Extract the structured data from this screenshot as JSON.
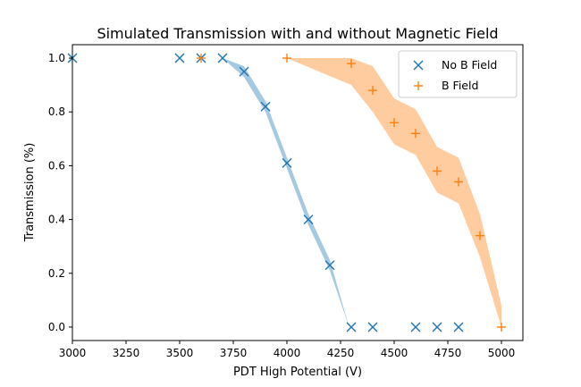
{
  "chart_data": {
    "type": "scatter",
    "title": "Simulated Transmission with and without Magnetic Field",
    "xlabel": "PDT High Potential (V)",
    "ylabel": "Transmission (%)",
    "xlim": [
      3000,
      5100
    ],
    "ylim": [
      -0.05,
      1.05
    ],
    "xticks": [
      3000,
      3250,
      3500,
      3750,
      4000,
      4250,
      4500,
      4750,
      5000
    ],
    "xtick_labels": [
      "3000",
      "3250",
      "3500",
      "3750",
      "4000",
      "4250",
      "4500",
      "4750",
      "5000"
    ],
    "yticks": [
      0.0,
      0.2,
      0.4,
      0.6,
      0.8,
      1.0
    ],
    "ytick_labels": [
      "0.0",
      "0.2",
      "0.4",
      "0.6",
      "0.8",
      "1.0"
    ],
    "grid": false,
    "legend_position": "top-right",
    "series": [
      {
        "name": "No B Field",
        "marker": "x",
        "color": "#1f77b4",
        "band_color": "#1f77b4",
        "x": [
          3000,
          3500,
          3600,
          3700,
          3800,
          3900,
          4000,
          4100,
          4200,
          4300,
          4400,
          4600,
          4700,
          4800
        ],
        "y": [
          1.0,
          1.0,
          1.0,
          1.0,
          0.95,
          0.82,
          0.61,
          0.4,
          0.23,
          0.0,
          0.0,
          0.0,
          0.0,
          0.0
        ],
        "band_x": [
          3700,
          3800,
          3900,
          4000,
          4100,
          4200,
          4290
        ],
        "band_upper": [
          1.0,
          0.97,
          0.84,
          0.63,
          0.42,
          0.25,
          0.0
        ],
        "band_lower": [
          1.0,
          0.93,
          0.8,
          0.59,
          0.38,
          0.21,
          0.0
        ]
      },
      {
        "name": "B Field",
        "marker": "+",
        "color": "#ff7f0e",
        "band_color": "#ff7f0e",
        "x": [
          3600,
          4000,
          4300,
          4400,
          4500,
          4600,
          4700,
          4800,
          4900,
          5000
        ],
        "y": [
          1.0,
          1.0,
          0.98,
          0.88,
          0.76,
          0.72,
          0.58,
          0.54,
          0.34,
          0.0
        ],
        "band_x": [
          4000,
          4300,
          4400,
          4500,
          4600,
          4700,
          4800,
          4900,
          5000
        ],
        "band_upper": [
          1.0,
          1.0,
          0.97,
          0.85,
          0.81,
          0.67,
          0.63,
          0.42,
          0.08
        ],
        "band_lower": [
          1.0,
          0.9,
          0.8,
          0.68,
          0.64,
          0.5,
          0.46,
          0.26,
          0.0
        ]
      }
    ]
  }
}
